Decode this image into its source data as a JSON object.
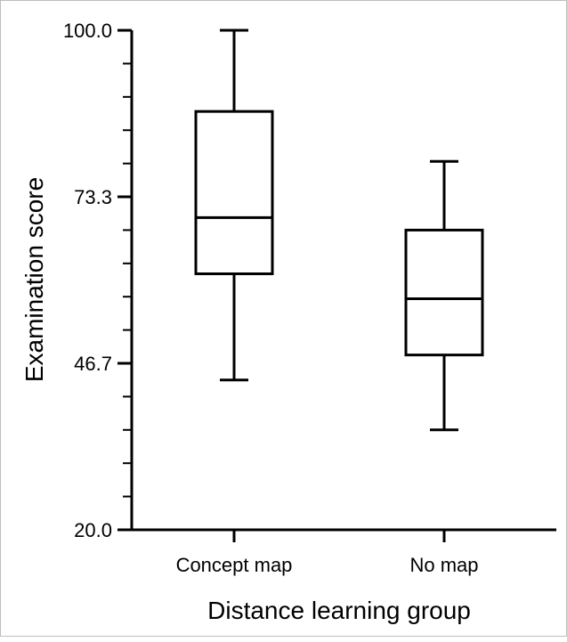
{
  "chart_data": {
    "type": "boxplot",
    "title": "",
    "xlabel": "Distance learning group",
    "ylabel": "Examination score",
    "ylim": [
      20.0,
      100.0
    ],
    "yticks_labeled": [
      "20.0",
      "46.7",
      "73.3",
      "100.0"
    ],
    "yticks_labeled_values": [
      20.0,
      46.7,
      73.3,
      100.0
    ],
    "minor_tick_step": 5.333,
    "grid": false,
    "legend": "none",
    "categories": [
      "Concept map",
      "No map"
    ],
    "boxes": [
      {
        "category": "Concept map",
        "min": 44.0,
        "q1": 61.0,
        "median": 70.0,
        "q3": 87.0,
        "max": 100.0
      },
      {
        "category": "No map",
        "min": 36.0,
        "q1": 48.0,
        "median": 57.0,
        "q3": 68.0,
        "max": 79.0
      }
    ],
    "colors": {
      "stroke": "#000000",
      "background": "#ffffff"
    }
  }
}
